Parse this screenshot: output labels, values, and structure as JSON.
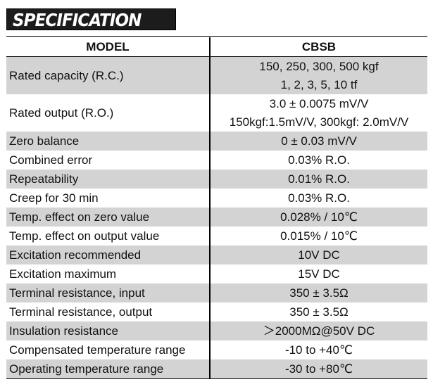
{
  "banner": {
    "title": "SPECIFICATION"
  },
  "table": {
    "header": {
      "param": "MODEL",
      "value": "CBSB"
    },
    "rows": [
      {
        "param": "Rated capacity (R.C.)",
        "values": [
          "150, 250, 300, 500 kgf",
          "1, 2, 3, 5, 10 tf"
        ]
      },
      {
        "param": "Rated output (R.O.)",
        "values": [
          "3.0 ± 0.0075 mV/V",
          "150kgf:1.5mV/V, 300kgf: 2.0mV/V"
        ]
      },
      {
        "param": "Zero balance",
        "values": [
          "0 ± 0.03 mV/V"
        ]
      },
      {
        "param": "Combined error",
        "values": [
          "0.03% R.O."
        ]
      },
      {
        "param": "Repeatability",
        "values": [
          "0.01% R.O."
        ]
      },
      {
        "param": "Creep for 30 min",
        "values": [
          "0.03% R.O."
        ]
      },
      {
        "param": "Temp. effect on zero value",
        "values": [
          "0.028% / 10℃"
        ]
      },
      {
        "param": "Temp. effect on output value",
        "values": [
          "0.015% / 10℃"
        ]
      },
      {
        "param": "Excitation recommended",
        "values": [
          "10V DC"
        ]
      },
      {
        "param": "Excitation maximum",
        "values": [
          "15V DC"
        ]
      },
      {
        "param": "Terminal resistance, input",
        "values": [
          "350 ± 3.5Ω"
        ]
      },
      {
        "param": "Terminal resistance, output",
        "values": [
          "350 ± 3.5Ω"
        ]
      },
      {
        "param": "Insulation resistance",
        "values": [
          "＞2000MΩ@50V DC"
        ]
      },
      {
        "param": "Compensated temperature range",
        "values": [
          "-10 to +40℃"
        ]
      },
      {
        "param": "Operating temperature range",
        "values": [
          "-30 to +80℃"
        ]
      }
    ]
  }
}
